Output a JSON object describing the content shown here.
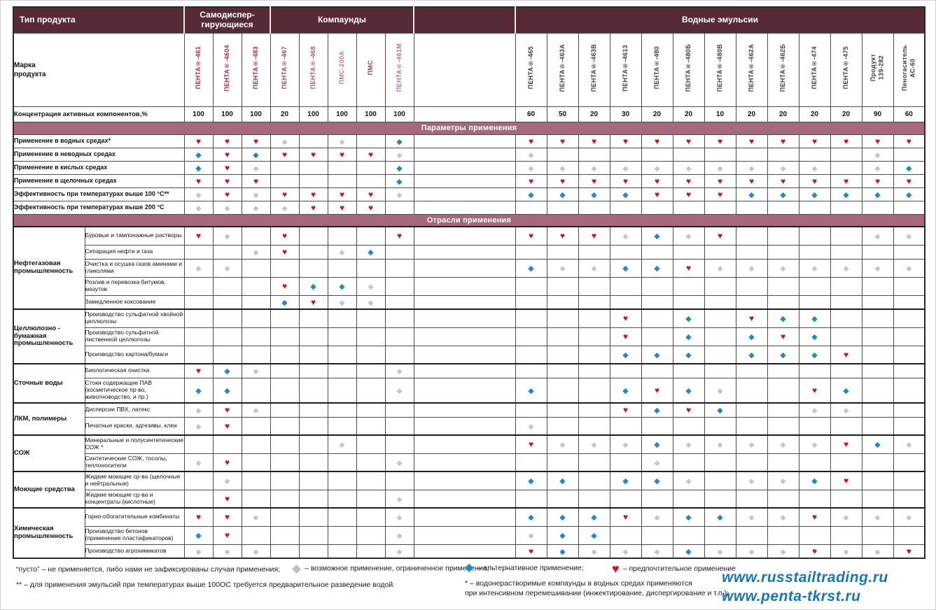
{
  "colors": {
    "header_bg": "#572b36",
    "band_bg": "#a5697b",
    "heart": "#ce1126",
    "blue_diamond": "#1e8bc6",
    "gray_diamond": "#c6c6c9",
    "url_blue": "#1677bd"
  },
  "symbols": {
    "H": {
      "glyph": "♥",
      "color": "#ce1126",
      "name": "heart-icon",
      "meaning": "предпочтительное применение"
    },
    "B": {
      "glyph": "◆",
      "color": "#1e8bc6",
      "name": "blue-diamond-icon",
      "meaning": "альтернативное применение"
    },
    "G": {
      "glyph": "◆",
      "color": "#c6c6c9",
      "name": "gray-diamond-icon",
      "meaning": "возможное применение, ограниченное применение"
    }
  },
  "table": {
    "corner_label": "Тип продукта",
    "mark_label": "Марка\nпродукта",
    "conc_label": "Концентрация активных компонентов,%",
    "param_band": "Параметры применения",
    "industry_band": "Отрасли применения",
    "groups": [
      {
        "label": "Самодиспер-\nгирующиеся",
        "span": 3
      },
      {
        "label": "Компаунды",
        "span": 5
      },
      {
        "label": "",
        "span": 1
      },
      {
        "label": "Водные эмульсии",
        "span": 13
      }
    ],
    "columns": [
      {
        "label": "ПЕНТА®-461",
        "conc": "100",
        "color": "#b12a3e"
      },
      {
        "label": "ПЕНТА®-4604",
        "conc": "100",
        "color": "#b12a3e"
      },
      {
        "label": "ПЕНТА®-483",
        "conc": "100",
        "color": "#b12a3e"
      },
      {
        "label": "ПЕНТА®-467",
        "conc": "20",
        "color": "#97485c"
      },
      {
        "label": "ПЕНТА®-468",
        "conc": "100",
        "color": "#ad5a70"
      },
      {
        "label": "ПМС-200А",
        "conc": "100",
        "color": "#c07d92"
      },
      {
        "label": "ПМС",
        "conc": "100",
        "color": "#97485c"
      },
      {
        "label": "ПЕНТА®-461М",
        "conc": "100",
        "color": "#bb7289"
      },
      {
        "label": "",
        "conc": "",
        "color": "",
        "spacer": true
      },
      {
        "label": "ПЕНТА®-465",
        "conc": "60",
        "color": "#3f3f41"
      },
      {
        "label": "ПЕНТА®-463А",
        "conc": "50",
        "color": "#3f3f41"
      },
      {
        "label": "ПЕНТА®-463В",
        "conc": "20",
        "color": "#3f3f41"
      },
      {
        "label": "ПЕНТА®-4613",
        "conc": "30",
        "color": "#3f3f41"
      },
      {
        "label": "ПЕНТА®-480",
        "conc": "20",
        "color": "#3f3f41"
      },
      {
        "label": "ПЕНТА®-480Б",
        "conc": "20",
        "color": "#3f3f41"
      },
      {
        "label": "ПЕНТА®-480В",
        "conc": "10",
        "color": "#3f3f41"
      },
      {
        "label": "ПЕНТА®-462А",
        "conc": "20",
        "color": "#3f3f41"
      },
      {
        "label": "ПЕНТА®-462Б",
        "conc": "20",
        "color": "#3f3f41"
      },
      {
        "label": "ПЕНТА®-474",
        "conc": "20",
        "color": "#3f3f41"
      },
      {
        "label": "ПЕНТА®-475",
        "conc": "20",
        "color": "#3f3f41"
      },
      {
        "label": "Продукт\n139-282",
        "conc": "90",
        "color": "#3f3f41"
      },
      {
        "label": "Пеногаситель\nАС-60",
        "conc": "60",
        "color": "#3f3f41"
      }
    ],
    "param_rows": [
      {
        "label": "Применение в водных средах*",
        "cells": [
          "H",
          "H",
          "H",
          "G",
          "",
          "G",
          "",
          "B",
          "",
          "H",
          "H",
          "H",
          "H",
          "H",
          "H",
          "H",
          "H",
          "H",
          "H",
          "H",
          "H",
          "H"
        ]
      },
      {
        "label": "Применение в неводных средах",
        "cells": [
          "B",
          "H",
          "B",
          "H",
          "H",
          "H",
          "H",
          "G",
          "",
          "G",
          "",
          "",
          "",
          "",
          "",
          "",
          "",
          "",
          "",
          "",
          "G",
          ""
        ]
      },
      {
        "label": "Применение в кислых средах",
        "cells": [
          "B",
          "H",
          "G",
          "",
          "",
          "",
          "",
          "B",
          "",
          "G",
          "G",
          "G",
          "G",
          "G",
          "G",
          "G",
          "G",
          "G",
          "G",
          "",
          "G",
          "B"
        ]
      },
      {
        "label": "Применение в щелочных средах",
        "cells": [
          "H",
          "H",
          "H",
          "",
          "",
          "",
          "",
          "B",
          "",
          "H",
          "H",
          "H",
          "H",
          "H",
          "H",
          "H",
          "H",
          "H",
          "H",
          "H",
          "H",
          "H"
        ]
      },
      {
        "label": "Эффективность при температурах выше 100 °С**",
        "cells": [
          "G",
          "H",
          "G",
          "H",
          "H",
          "H",
          "H",
          "G",
          "",
          "B",
          "B",
          "B",
          "B",
          "H",
          "H",
          "H",
          "B",
          "B",
          "B",
          "B",
          "B",
          "B"
        ]
      },
      {
        "label": "Эффективность при температурах выше 200 °С",
        "cells": [
          "G",
          "G",
          "G",
          "G",
          "H",
          "H",
          "H",
          "",
          "",
          "",
          "",
          "",
          "",
          "",
          "",
          "",
          "",
          "",
          "",
          "",
          "",
          ""
        ]
      }
    ],
    "industry_groups": [
      {
        "label": "Нефтегазовая промышленность",
        "rows": [
          {
            "label": "Буровые и тампонажные растворы",
            "cells": [
              "H",
              "G",
              "",
              "H",
              "",
              "",
              "",
              "H",
              "",
              "H",
              "H",
              "H",
              "G",
              "B",
              "G",
              "H",
              "",
              "",
              "",
              "",
              "G",
              "G"
            ]
          },
          {
            "label": "Сепарация нефти и газа",
            "cells": [
              "",
              "",
              "G",
              "H",
              "",
              "G",
              "B",
              "",
              "",
              "",
              "",
              "",
              "",
              "",
              "",
              "",
              "",
              "",
              "",
              "",
              "",
              ""
            ]
          },
          {
            "label": "Очистка и осушка газов аминами и гликолями",
            "cells": [
              "G",
              "G",
              "",
              "",
              "",
              "",
              "",
              "",
              "",
              "B",
              "G",
              "G",
              "B",
              "B",
              "H",
              "G",
              "G",
              "G",
              "G",
              "G",
              "G",
              "G"
            ]
          },
          {
            "label": "Розлив и перевозка битумов, мазутов",
            "cells": [
              "",
              "",
              "",
              "H",
              "B",
              "B",
              "G",
              "",
              "",
              "",
              "",
              "",
              "",
              "",
              "",
              "",
              "",
              "",
              "",
              "",
              "",
              ""
            ]
          },
          {
            "label": "Замедленное коксование",
            "cells": [
              "",
              "",
              "",
              "B",
              "H",
              "G",
              "G",
              "",
              "",
              "",
              "",
              "",
              "",
              "",
              "",
              "",
              "",
              "",
              "",
              "",
              "",
              ""
            ]
          }
        ]
      },
      {
        "label": "Целлюлозно - бумажная промышленность",
        "rows": [
          {
            "label": "Производство сульфатной хвойной целлюлозы",
            "cells": [
              "",
              "",
              "",
              "",
              "",
              "",
              "",
              "",
              "",
              "",
              "",
              "",
              "H",
              "",
              "B",
              "",
              "H",
              "B",
              "B",
              "",
              "",
              ""
            ]
          },
          {
            "label": "Производство сульфатной лиственной целлюлозы",
            "cells": [
              "",
              "",
              "",
              "",
              "",
              "",
              "",
              "",
              "",
              "",
              "",
              "",
              "H",
              "",
              "B",
              "",
              "B",
              "H",
              "B",
              "",
              "",
              ""
            ]
          },
          {
            "label": "Производство картона/бумаги",
            "cells": [
              "",
              "",
              "",
              "",
              "",
              "",
              "",
              "",
              "",
              "",
              "",
              "",
              "B",
              "B",
              "B",
              "",
              "B",
              "B",
              "B",
              "H",
              "",
              ""
            ]
          }
        ]
      },
      {
        "label": "Сточные воды",
        "rows": [
          {
            "label": "Биологическая очистка",
            "cells": [
              "H",
              "B",
              "G",
              "",
              "",
              "",
              "",
              "G",
              "",
              "",
              "",
              "",
              "",
              "",
              "",
              "",
              "",
              "",
              "",
              "",
              "",
              ""
            ]
          },
          {
            "label": "Стоки содержащие ПАВ (косметическое пр-во, животноводство, и пр.)",
            "cells": [
              "B",
              "B",
              "",
              "",
              "",
              "",
              "",
              "G",
              "",
              "B",
              "",
              "",
              "B",
              "H",
              "B",
              "G",
              "",
              "",
              "H",
              "B",
              "",
              ""
            ]
          }
        ]
      },
      {
        "label": "ЛКМ, полимеры",
        "rows": [
          {
            "label": "Дисперсии ПВХ, латекс",
            "cells": [
              "G",
              "H",
              "G",
              "",
              "",
              "",
              "",
              "",
              "",
              "",
              "",
              "",
              "H",
              "B",
              "H",
              "B",
              "",
              "",
              "G",
              "G",
              "",
              ""
            ]
          },
          {
            "label": "Печатные краски, адгезивы, клеи",
            "cells": [
              "G",
              "H",
              "",
              "",
              "",
              "",
              "",
              "",
              "",
              "G",
              "",
              "",
              "",
              "",
              "",
              "",
              "",
              "",
              "",
              "",
              "",
              ""
            ]
          }
        ]
      },
      {
        "label": "СОЖ",
        "rows": [
          {
            "label": "Минеральные и полусинтетические СОЖ *",
            "cells": [
              "",
              "",
              "",
              "",
              "",
              "G",
              "",
              "",
              "",
              "H",
              "G",
              "G",
              "G",
              "B",
              "G",
              "G",
              "G",
              "G",
              "G",
              "H",
              "B",
              "G"
            ]
          },
          {
            "label": "Синтетические СОЖ, тосолы, теплоносители",
            "cells": [
              "G",
              "H",
              "",
              "",
              "",
              "",
              "",
              "G",
              "",
              "",
              "",
              "",
              "",
              "G",
              "",
              "",
              "",
              "",
              "",
              "",
              "",
              ""
            ]
          }
        ]
      },
      {
        "label": "Моющие средства",
        "rows": [
          {
            "label": "Жидкие моющие ср-ва (щелочные и нейтральные)",
            "cells": [
              "",
              "G",
              "",
              "",
              "",
              "",
              "",
              "",
              "",
              "B",
              "B",
              "",
              "B",
              "B",
              "G",
              "",
              "G",
              "G",
              "B",
              "H",
              "",
              ""
            ]
          },
          {
            "label": "Жидкие моющие ср-ва и концентраты (кислотные)",
            "cells": [
              "",
              "H",
              "",
              "",
              "",
              "",
              "",
              "G",
              "",
              "",
              "",
              "",
              "",
              "",
              "",
              "",
              "",
              "",
              "",
              "",
              "",
              ""
            ]
          }
        ]
      },
      {
        "label": "Химическая промышленность",
        "rows": [
          {
            "label": "Горно-обогатительные комбинаты",
            "cells": [
              "H",
              "H",
              "G",
              "",
              "",
              "",
              "",
              "G",
              "",
              "B",
              "B",
              "B",
              "H",
              "G",
              "B",
              "B",
              "G",
              "G",
              "H",
              "G",
              "G",
              "G"
            ]
          },
          {
            "label": "Производство бетонов (применение пластификаторов)",
            "cells": [
              "B",
              "H",
              "",
              "",
              "",
              "",
              "",
              "G",
              "",
              "G",
              "B",
              "B",
              "",
              "",
              "",
              "",
              "",
              "",
              "",
              "",
              "",
              ""
            ]
          },
          {
            "label": "Производство агрохимикатов",
            "cells": [
              "G",
              "G",
              "G",
              "",
              "",
              "",
              "",
              "G",
              "",
              "H",
              "B",
              "G",
              "G",
              "G",
              "B",
              "G",
              "G",
              "G",
              "H",
              "G",
              "G",
              "H"
            ]
          }
        ]
      }
    ]
  },
  "legend": {
    "empty_item": "“пусто” – не применяется, либо нами не зафиксированы случаи применения;",
    "gray_item": "– возможное применение, ограниченное применение;",
    "blue_item": "– альтернативное применение;",
    "heart_item": "– предпочтительное применение",
    "note_double_star": "** – для применения эмульсий при температурах выше 100ОС требуется предварительное разведение водой.",
    "note_star_line1": "* – водонерастворимые компаунды в водных средах применяются",
    "note_star_line2": "при интенсивном перемешивании (инжектирование, диспергирование и т.п.);",
    "url1": "www.russtailtrading.ru",
    "url2": "www.penta-tkrst.ru"
  }
}
